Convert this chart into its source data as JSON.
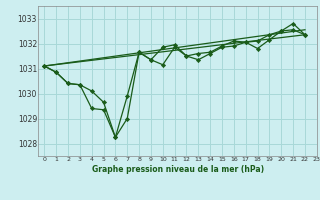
{
  "title": "Graphe pression niveau de la mer (hPa)",
  "bg_color": "#cdeef0",
  "grid_color": "#a8d8d8",
  "line_color": "#1a5c1a",
  "xlim": [
    -0.5,
    23
  ],
  "ylim": [
    1027.5,
    1033.5
  ],
  "yticks": [
    1028,
    1029,
    1030,
    1031,
    1032,
    1033
  ],
  "xticks": [
    0,
    1,
    2,
    3,
    4,
    5,
    6,
    7,
    8,
    9,
    10,
    11,
    12,
    13,
    14,
    15,
    16,
    17,
    18,
    19,
    20,
    21,
    22,
    23
  ],
  "series": [
    {
      "x": [
        0,
        1,
        2,
        3,
        4,
        5,
        6,
        7,
        8,
        9,
        10,
        11,
        12,
        13,
        14,
        15,
        16,
        17,
        18,
        19,
        20,
        21,
        22
      ],
      "y": [
        1031.1,
        1030.85,
        1030.4,
        1030.35,
        1029.4,
        1029.35,
        1028.25,
        1029.0,
        1031.65,
        1031.35,
        1031.15,
        1031.85,
        1031.5,
        1031.35,
        1031.6,
        1031.85,
        1031.9,
        1032.05,
        1031.8,
        1032.15,
        1032.5,
        1032.55,
        1032.35
      ],
      "marker": true
    },
    {
      "x": [
        0,
        1,
        2,
        3,
        4,
        5,
        6,
        7,
        8,
        9,
        10,
        11,
        12,
        13,
        14,
        15,
        16,
        17,
        18,
        19,
        20,
        21,
        22
      ],
      "y": [
        1031.1,
        1030.85,
        1030.4,
        1030.35,
        1030.1,
        1029.65,
        1028.25,
        1029.9,
        1031.65,
        1031.35,
        1031.85,
        1031.95,
        1031.5,
        1031.6,
        1031.65,
        1031.9,
        1032.1,
        1032.05,
        1032.1,
        1032.35,
        1032.5,
        1032.8,
        1032.35
      ],
      "marker": true
    },
    {
      "x": [
        0,
        22
      ],
      "y": [
        1031.1,
        1032.35
      ],
      "marker": false
    },
    {
      "x": [
        0,
        22
      ],
      "y": [
        1031.1,
        1032.35
      ],
      "marker": false
    }
  ]
}
